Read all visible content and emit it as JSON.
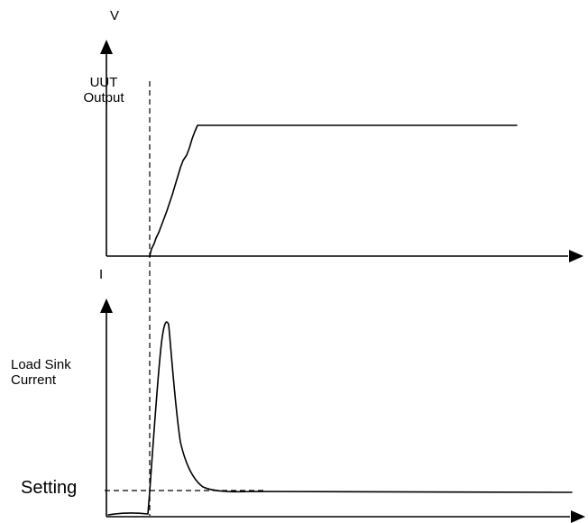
{
  "top_graph": {
    "y_axis_symbol": "V",
    "y_axis_label": "UUT\nOutput"
  },
  "bottom_graph": {
    "y_axis_symbol": "I",
    "y_axis_label": "Load Sink\nCurrent",
    "setting_label": "Setting"
  }
}
